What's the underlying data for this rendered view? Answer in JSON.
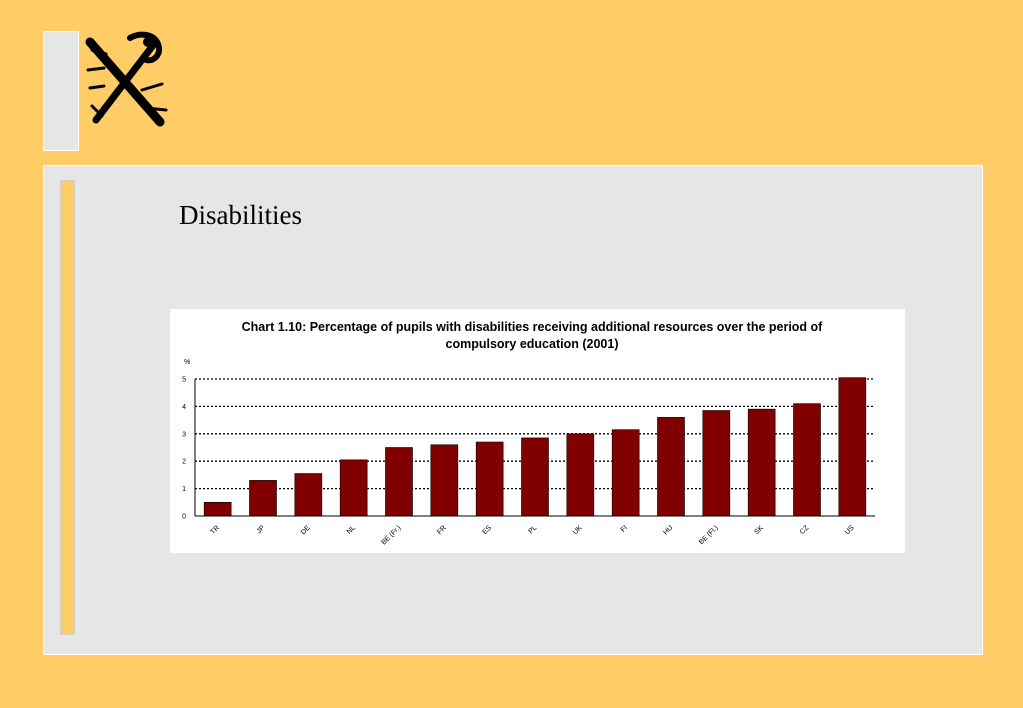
{
  "slide": {
    "title": "Disabilities"
  },
  "colors": {
    "background": "#FFCC66",
    "panel": "#E6E6E6",
    "bar": "#800000"
  },
  "logo": {
    "icon": "heraldic-lion-emblem-icon"
  },
  "chart_data": {
    "type": "bar",
    "title": "Chart 1.10: Percentage of pupils with disabilities receiving additional resources over the period of compulsory education (2001)",
    "ylabel": "%",
    "xlabel": "",
    "ylim": [
      0,
      5
    ],
    "yticks": [
      0,
      1,
      2,
      3,
      4,
      5
    ],
    "grid": "horizontal-dotted",
    "categories": [
      "TR",
      "JP",
      "DE",
      "NL",
      "BE (Fr.)",
      "FR",
      "ES",
      "PL",
      "UK",
      "FI",
      "HU",
      "BE (Fl.)",
      "SK",
      "CZ",
      "US"
    ],
    "values": [
      0.5,
      1.3,
      1.55,
      2.05,
      2.5,
      2.6,
      2.7,
      2.85,
      3.0,
      3.15,
      3.6,
      3.85,
      3.9,
      4.1,
      5.05
    ]
  }
}
